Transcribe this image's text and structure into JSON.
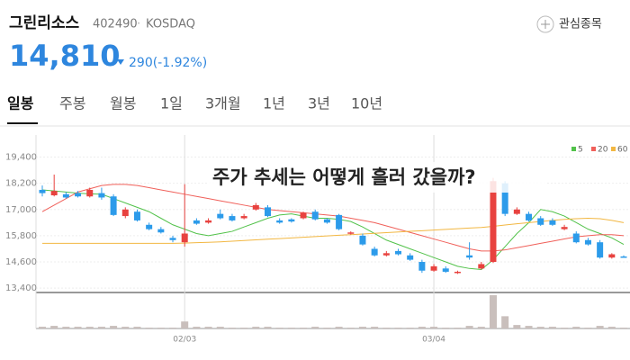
{
  "header": {
    "name": "그린리소스",
    "code": "402490",
    "market": "KOSDAQ",
    "watch": "관심종목",
    "price": "14,810",
    "change": "290(-1.92%)"
  },
  "tabs": [
    "일봉",
    "주봉",
    "월봉",
    "1일",
    "3개월",
    "1년",
    "3년",
    "10년"
  ],
  "overlay": "주가 추세는 어떻게 흘러 갔을까?",
  "chart_data": {
    "type": "candlestick",
    "categories": [
      null,
      null,
      null,
      null,
      null,
      null,
      null,
      null,
      null,
      null,
      null,
      null,
      "02/03",
      null,
      null,
      null,
      null,
      null,
      null,
      null,
      null,
      null,
      null,
      null,
      null,
      null,
      null,
      null,
      null,
      null,
      null,
      null,
      null,
      "03/04",
      null,
      null,
      null,
      null,
      null,
      null,
      null,
      null,
      null,
      null,
      null,
      null,
      null,
      null,
      null,
      null
    ],
    "open": [
      17900,
      17650,
      17700,
      17750,
      17600,
      17750,
      17600,
      16700,
      16900,
      16300,
      16100,
      15700,
      15500,
      16500,
      16400,
      16800,
      16700,
      16600,
      17000,
      17100,
      16500,
      16550,
      16600,
      16900,
      16550,
      16750,
      15900,
      15800,
      15200,
      14900,
      15100,
      14900,
      14600,
      14200,
      14300,
      14100,
      14900,
      14300,
      14600,
      18200,
      16800,
      16800,
      16600,
      16500,
      16100,
      15900,
      15600,
      15500,
      14800,
      14850
    ],
    "high": [
      18100,
      18600,
      17800,
      17850,
      18000,
      18000,
      17700,
      17100,
      17000,
      16400,
      16200,
      15800,
      18160,
      16600,
      16600,
      17000,
      16800,
      16800,
      17300,
      17200,
      16600,
      16600,
      16900,
      17000,
      16600,
      16800,
      16000,
      15900,
      15300,
      15100,
      15200,
      15000,
      14700,
      14500,
      14400,
      14200,
      15500,
      14600,
      18450,
      18300,
      17100,
      16900,
      16700,
      16600,
      16300,
      16000,
      15700,
      15600,
      15000,
      14900
    ],
    "low": [
      17600,
      17600,
      17500,
      17550,
      17550,
      17450,
      16700,
      16600,
      16450,
      16050,
      15900,
      15500,
      15300,
      16300,
      16350,
      16550,
      16450,
      16550,
      16950,
      16650,
      16350,
      16400,
      16550,
      16500,
      16350,
      16050,
      15850,
      15350,
      14850,
      14850,
      14900,
      14650,
      14100,
      14150,
      14100,
      14050,
      14700,
      14250,
      14550,
      16700,
      16750,
      16450,
      16250,
      16250,
      16050,
      15450,
      15350,
      14750,
      14750,
      14800
    ],
    "close": [
      17750,
      17850,
      17550,
      17600,
      17900,
      17550,
      16750,
      17000,
      16500,
      16100,
      15950,
      15600,
      15900,
      16350,
      16500,
      16600,
      16500,
      16700,
      17200,
      16700,
      16400,
      16450,
      16850,
      16550,
      16400,
      16100,
      15950,
      15400,
      14900,
      15000,
      14950,
      14700,
      14200,
      14400,
      14150,
      14150,
      14800,
      14500,
      18300,
      16800,
      17000,
      16500,
      16300,
      16300,
      16200,
      15500,
      15400,
      14800,
      14950,
      14810
    ],
    "volume": [
      2,
      3,
      2,
      2,
      2,
      2,
      3,
      2,
      2,
      1,
      1,
      1,
      8,
      2,
      2,
      2,
      1,
      1,
      2,
      2,
      1,
      1,
      1,
      2,
      1,
      2,
      1,
      2,
      2,
      1,
      1,
      1,
      2,
      2,
      1,
      1,
      3,
      2,
      38,
      14,
      4,
      3,
      2,
      2,
      1,
      2,
      1,
      3,
      2,
      1
    ],
    "ma": [
      {
        "name": "5",
        "color": "#52c24a",
        "values": [
          17900,
          17850,
          17800,
          17750,
          17720,
          17700,
          17500,
          17300,
          17100,
          16900,
          16600,
          16300,
          16100,
          15900,
          15800,
          15900,
          16000,
          16200,
          16400,
          16600,
          16750,
          16800,
          16700,
          16600,
          16600,
          16550,
          16450,
          16200,
          15900,
          15600,
          15400,
          15200,
          15000,
          14800,
          14600,
          14400,
          14300,
          14250,
          14700,
          15300,
          15900,
          16400,
          17000,
          16900,
          16700,
          16400,
          16100,
          15900,
          15700,
          15400
        ]
      },
      {
        "name": "20",
        "color": "#f0605a",
        "values": [
          16900,
          17200,
          17500,
          17800,
          17950,
          18100,
          18150,
          18150,
          18100,
          18000,
          17900,
          17800,
          17700,
          17600,
          17500,
          17400,
          17300,
          17200,
          17100,
          17000,
          16950,
          16900,
          16850,
          16800,
          16750,
          16700,
          16600,
          16500,
          16400,
          16250,
          16100,
          15950,
          15800,
          15650,
          15500,
          15350,
          15200,
          15100,
          15100,
          15150,
          15250,
          15350,
          15450,
          15550,
          15650,
          15750,
          15800,
          15850,
          15850,
          15800
        ]
      },
      {
        "name": "60",
        "color": "#f2b742",
        "values": [
          15450,
          15450,
          15450,
          15450,
          15450,
          15450,
          15450,
          15450,
          15450,
          15450,
          15450,
          15450,
          15460,
          15480,
          15500,
          15520,
          15550,
          15580,
          15610,
          15640,
          15670,
          15700,
          15730,
          15760,
          15790,
          15820,
          15850,
          15880,
          15910,
          15940,
          15970,
          16000,
          16030,
          16060,
          16090,
          16120,
          16150,
          16180,
          16230,
          16290,
          16350,
          16400,
          16450,
          16500,
          16550,
          16580,
          16600,
          16580,
          16500,
          16400
        ]
      }
    ],
    "up_color": "#e8423f",
    "down_color": "#2c9bea",
    "volume_color": "#c9bfbc",
    "ylim": [
      13200,
      20000
    ],
    "yticks": [
      {
        "value": 19400,
        "label": "19,400"
      },
      {
        "value": 18200,
        "label": "18,200"
      },
      {
        "value": 17000,
        "label": "17,000"
      },
      {
        "value": 15800,
        "label": "15,800"
      },
      {
        "value": 14600,
        "label": "14,600"
      },
      {
        "value": 13400,
        "label": "13,400"
      }
    ]
  }
}
